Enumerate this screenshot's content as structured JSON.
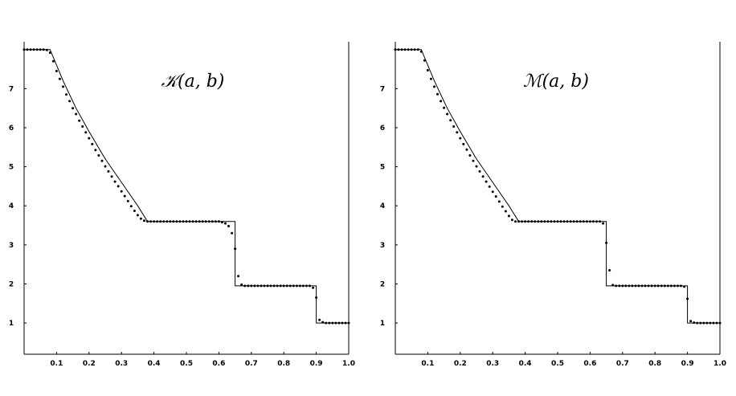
{
  "chart_data": [
    {
      "type": "line",
      "title": "𝒦(a, b)",
      "xlabel": "",
      "ylabel": "",
      "xlim": [
        0.0,
        1.0
      ],
      "ylim": [
        0.2,
        8.2
      ],
      "x_ticks": [
        0.1,
        0.2,
        0.3,
        0.4,
        0.5,
        0.6,
        0.7,
        0.8,
        0.9,
        1.0
      ],
      "x_tick_labels": [
        "0.1",
        "0.2",
        "0.3",
        "0.4",
        "0.5",
        "0.6",
        "0.7",
        "0.8",
        "0.9",
        "1.0"
      ],
      "y_ticks": [
        1,
        2,
        3,
        4,
        5,
        6,
        7
      ],
      "y_tick_labels": [
        "1",
        "2",
        "3",
        "4",
        "5",
        "6",
        "7"
      ],
      "grid": false,
      "series": [
        {
          "style": "line",
          "x": [
            0.0,
            0.08,
            0.12,
            0.16,
            0.2,
            0.25,
            0.3,
            0.35,
            0.38,
            0.65,
            0.65,
            0.9,
            0.9,
            1.0
          ],
          "y": [
            8.0,
            8.0,
            7.2,
            6.5,
            5.9,
            5.2,
            4.6,
            4.0,
            3.6,
            3.6,
            1.95,
            1.95,
            1.0,
            1.0
          ]
        },
        {
          "style": "markers",
          "x": [
            0.0,
            0.01,
            0.02,
            0.03,
            0.04,
            0.05,
            0.06,
            0.07,
            0.08,
            0.09,
            0.1,
            0.11,
            0.12,
            0.13,
            0.14,
            0.15,
            0.16,
            0.17,
            0.18,
            0.19,
            0.2,
            0.21,
            0.22,
            0.23,
            0.24,
            0.25,
            0.26,
            0.27,
            0.28,
            0.29,
            0.3,
            0.31,
            0.32,
            0.33,
            0.34,
            0.35,
            0.36,
            0.37,
            0.38,
            0.39,
            0.4,
            0.41,
            0.42,
            0.43,
            0.44,
            0.45,
            0.46,
            0.47,
            0.48,
            0.49,
            0.5,
            0.51,
            0.52,
            0.53,
            0.54,
            0.55,
            0.56,
            0.57,
            0.58,
            0.59,
            0.6,
            0.61,
            0.62,
            0.63,
            0.64,
            0.65,
            0.66,
            0.67,
            0.68,
            0.69,
            0.7,
            0.71,
            0.72,
            0.73,
            0.74,
            0.75,
            0.76,
            0.77,
            0.78,
            0.79,
            0.8,
            0.81,
            0.82,
            0.83,
            0.84,
            0.85,
            0.86,
            0.87,
            0.88,
            0.89,
            0.9,
            0.91,
            0.92,
            0.93,
            0.94,
            0.95,
            0.96,
            0.97,
            0.98,
            0.99,
            1.0
          ],
          "y": [
            8.0,
            8.0,
            8.0,
            8.0,
            8.0,
            8.0,
            8.0,
            7.99,
            7.92,
            7.7,
            7.45,
            7.25,
            7.05,
            6.85,
            6.68,
            6.5,
            6.35,
            6.18,
            6.03,
            5.88,
            5.73,
            5.58,
            5.43,
            5.29,
            5.15,
            5.01,
            4.88,
            4.75,
            4.62,
            4.5,
            4.37,
            4.25,
            4.12,
            3.99,
            3.87,
            3.76,
            3.67,
            3.62,
            3.6,
            3.6,
            3.6,
            3.6,
            3.6,
            3.6,
            3.6,
            3.6,
            3.6,
            3.6,
            3.6,
            3.6,
            3.6,
            3.6,
            3.6,
            3.6,
            3.6,
            3.6,
            3.6,
            3.6,
            3.6,
            3.6,
            3.6,
            3.58,
            3.55,
            3.48,
            3.3,
            2.9,
            2.2,
            1.98,
            1.95,
            1.95,
            1.95,
            1.95,
            1.95,
            1.95,
            1.95,
            1.95,
            1.95,
            1.95,
            1.95,
            1.95,
            1.95,
            1.95,
            1.95,
            1.95,
            1.95,
            1.95,
            1.95,
            1.95,
            1.95,
            1.9,
            1.65,
            1.08,
            1.02,
            1.0,
            1.0,
            1.0,
            1.0,
            1.0,
            1.0,
            1.0,
            1.0
          ]
        }
      ]
    },
    {
      "type": "line",
      "title": "ℳ(a, b)",
      "xlabel": "",
      "ylabel": "",
      "xlim": [
        0.0,
        1.0
      ],
      "ylim": [
        0.2,
        8.2
      ],
      "x_ticks": [
        0.1,
        0.2,
        0.3,
        0.4,
        0.5,
        0.6,
        0.7,
        0.8,
        0.9,
        1.0
      ],
      "x_tick_labels": [
        "0.1",
        "0.2",
        "0.3",
        "0.4",
        "0.5",
        "0.6",
        "0.7",
        "0.8",
        "0.9",
        "1.0"
      ],
      "y_ticks": [
        1,
        2,
        3,
        4,
        5,
        6,
        7
      ],
      "y_tick_labels": [
        "1",
        "2",
        "3",
        "4",
        "5",
        "6",
        "7"
      ],
      "grid": false,
      "series": [
        {
          "style": "line",
          "x": [
            0.0,
            0.08,
            0.12,
            0.16,
            0.2,
            0.25,
            0.3,
            0.35,
            0.38,
            0.65,
            0.65,
            0.9,
            0.9,
            1.0
          ],
          "y": [
            8.0,
            8.0,
            7.2,
            6.5,
            5.9,
            5.2,
            4.6,
            4.0,
            3.6,
            3.6,
            1.95,
            1.95,
            1.0,
            1.0
          ]
        },
        {
          "style": "markers",
          "x": [
            0.0,
            0.01,
            0.02,
            0.03,
            0.04,
            0.05,
            0.06,
            0.07,
            0.08,
            0.09,
            0.1,
            0.11,
            0.12,
            0.13,
            0.14,
            0.15,
            0.16,
            0.17,
            0.18,
            0.19,
            0.2,
            0.21,
            0.22,
            0.23,
            0.24,
            0.25,
            0.26,
            0.27,
            0.28,
            0.29,
            0.3,
            0.31,
            0.32,
            0.33,
            0.34,
            0.35,
            0.36,
            0.37,
            0.38,
            0.39,
            0.4,
            0.41,
            0.42,
            0.43,
            0.44,
            0.45,
            0.46,
            0.47,
            0.48,
            0.49,
            0.5,
            0.51,
            0.52,
            0.53,
            0.54,
            0.55,
            0.56,
            0.57,
            0.58,
            0.59,
            0.6,
            0.61,
            0.62,
            0.63,
            0.64,
            0.65,
            0.66,
            0.67,
            0.68,
            0.69,
            0.7,
            0.71,
            0.72,
            0.73,
            0.74,
            0.75,
            0.76,
            0.77,
            0.78,
            0.79,
            0.8,
            0.81,
            0.82,
            0.83,
            0.84,
            0.85,
            0.86,
            0.87,
            0.88,
            0.89,
            0.9,
            0.91,
            0.92,
            0.93,
            0.94,
            0.95,
            0.96,
            0.97,
            0.98,
            0.99,
            1.0
          ],
          "y": [
            8.0,
            8.0,
            8.0,
            8.0,
            8.0,
            8.0,
            8.0,
            8.0,
            7.95,
            7.72,
            7.47,
            7.25,
            7.05,
            6.86,
            6.68,
            6.51,
            6.35,
            6.19,
            6.03,
            5.88,
            5.73,
            5.58,
            5.44,
            5.29,
            5.15,
            5.01,
            4.88,
            4.75,
            4.62,
            4.49,
            4.36,
            4.24,
            4.11,
            3.98,
            3.86,
            3.74,
            3.64,
            3.6,
            3.6,
            3.6,
            3.6,
            3.6,
            3.6,
            3.6,
            3.6,
            3.6,
            3.6,
            3.6,
            3.6,
            3.6,
            3.6,
            3.6,
            3.6,
            3.6,
            3.6,
            3.6,
            3.6,
            3.6,
            3.6,
            3.6,
            3.6,
            3.6,
            3.6,
            3.6,
            3.55,
            3.05,
            2.35,
            1.97,
            1.95,
            1.95,
            1.95,
            1.95,
            1.95,
            1.95,
            1.95,
            1.95,
            1.95,
            1.95,
            1.95,
            1.95,
            1.95,
            1.95,
            1.95,
            1.95,
            1.95,
            1.95,
            1.95,
            1.95,
            1.95,
            1.93,
            1.62,
            1.05,
            1.01,
            1.0,
            1.0,
            1.0,
            1.0,
            1.0,
            1.0,
            1.0,
            1.0
          ]
        }
      ]
    }
  ]
}
